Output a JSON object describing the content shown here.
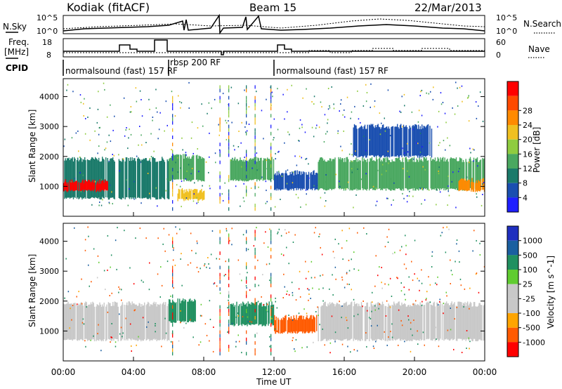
{
  "header": {
    "station": "Kodiak (fitACF)",
    "beam": "Beam 15",
    "date": "22/Mar/2013"
  },
  "noise_panel": {
    "left_label": "N.Sky",
    "right_label": "N.Search",
    "ticks_left": [
      "10^5",
      "10^0"
    ],
    "ticks_right": [
      "10^5",
      "10^0"
    ]
  },
  "freq_panel": {
    "left_label_1": "Freq.",
    "left_label_2": "[MHz]",
    "right_label": "Nave",
    "ticks_left": [
      "18",
      "8"
    ],
    "ticks_right": [
      "60",
      "0"
    ]
  },
  "cpid": {
    "label": "CPID",
    "modes": [
      {
        "name": "normalsound (fast) 157 RF",
        "start_hour": 0
      },
      {
        "name": "rbsp 200 RF",
        "start_hour": 6.0
      },
      {
        "name": "normalsound (fast) 157 RF",
        "start_hour": 12.0
      }
    ]
  },
  "x_axis": {
    "label": "Time UT",
    "ticks": [
      "00:00",
      "04:00",
      "08:00",
      "12:00",
      "16:00",
      "20:00",
      "00:00"
    ]
  },
  "colors": {
    "power_scale": [
      "#1f1fff",
      "#1a4fb0",
      "#1a7a6a",
      "#4aa860",
      "#8fcc40",
      "#f0c020",
      "#ff8a00",
      "#ff4a00",
      "#ff0000"
    ],
    "velocity_scale": [
      "#ff0000",
      "#ff5a00",
      "#ffa500",
      "#c8c8c8",
      "#c8c8c8",
      "#60cc30",
      "#209060",
      "#1a5fa0",
      "#1f2fbf"
    ]
  },
  "chart_data": [
    {
      "type": "heatmap",
      "title": "",
      "xlabel": "Time UT",
      "ylabel": "Slant Range [km]",
      "xlim": [
        0,
        24
      ],
      "ylim": [
        0,
        4600
      ],
      "yticks": [
        "1000",
        "2000",
        "3000",
        "4000"
      ],
      "colorbar": {
        "label": "Power [dB]",
        "ticks": [
          "4",
          "8",
          "12",
          "16",
          "20",
          "24",
          "28"
        ],
        "range": [
          0,
          32
        ]
      },
      "bands": [
        {
          "x": [
            0.0,
            6.0
          ],
          "y": [
            600,
            1900
          ],
          "value": 10
        },
        {
          "x": [
            0.0,
            2.5
          ],
          "y": [
            850,
            1150
          ],
          "value": 30
        },
        {
          "x": [
            6.0,
            8.0
          ],
          "y": [
            1200,
            2000
          ],
          "value": 12
        },
        {
          "x": [
            6.5,
            8.0
          ],
          "y": [
            550,
            850
          ],
          "value": 18
        },
        {
          "x": [
            9.5,
            12.0
          ],
          "y": [
            1200,
            1900
          ],
          "value": 11
        },
        {
          "x": [
            12.0,
            14.5
          ],
          "y": [
            900,
            1450
          ],
          "value": 5
        },
        {
          "x": [
            14.5,
            24.0
          ],
          "y": [
            900,
            1900
          ],
          "value": 12
        },
        {
          "x": [
            16.5,
            21.0
          ],
          "y": [
            2000,
            3000
          ],
          "value": 5
        },
        {
          "x": [
            22.5,
            24.0
          ],
          "y": [
            850,
            1200
          ],
          "value": 22
        }
      ]
    },
    {
      "type": "heatmap",
      "title": "",
      "xlabel": "Time UT",
      "ylabel": "Slant Range [km]",
      "xlim": [
        0,
        24
      ],
      "ylim": [
        0,
        4600
      ],
      "yticks": [
        "1000",
        "2000",
        "3000",
        "4000"
      ],
      "colorbar": {
        "label": "Velocity [m s^-1]",
        "ticks": [
          "1000",
          "500",
          "100",
          "25",
          "-25",
          "-100",
          "-500",
          "-1000"
        ]
      },
      "bands": [
        {
          "x": [
            0.0,
            6.0
          ],
          "y": [
            700,
            1900
          ],
          "value": 0
        },
        {
          "x": [
            6.0,
            7.5
          ],
          "y": [
            1300,
            2000
          ],
          "value": 300
        },
        {
          "x": [
            9.5,
            12.0
          ],
          "y": [
            1200,
            1900
          ],
          "value": 150
        },
        {
          "x": [
            12.0,
            14.5
          ],
          "y": [
            950,
            1450
          ],
          "value": -150
        },
        {
          "x": [
            14.5,
            24.0
          ],
          "y": [
            700,
            1900
          ],
          "value": 0
        }
      ]
    }
  ]
}
